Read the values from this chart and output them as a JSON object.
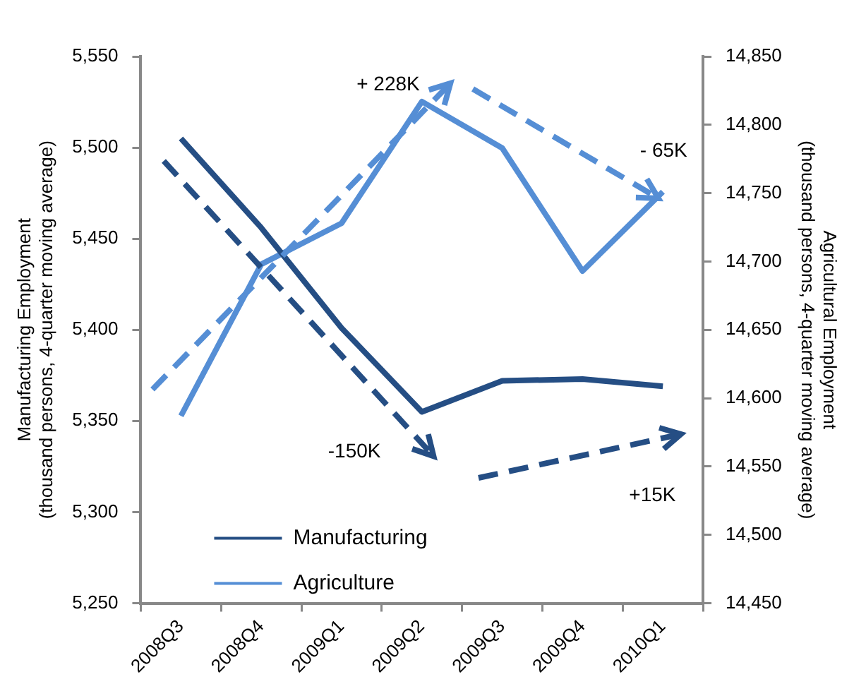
{
  "chart_data": {
    "type": "line",
    "categories": [
      "2008Q3",
      "2008Q4",
      "2009Q1",
      "2009Q2",
      "2009Q3",
      "2009Q4",
      "2010Q1"
    ],
    "series": [
      {
        "name": "Manufacturing",
        "color": "#254e84",
        "values": [
          5505,
          5456,
          5401,
          5355,
          5372,
          5373,
          5369
        ]
      },
      {
        "name": "Agriculture",
        "color": "#558ed5",
        "axis": "y2",
        "values": [
          14587,
          14698,
          14728,
          14817,
          14783,
          14693,
          14751
        ]
      }
    ],
    "ylabel": "Manufacturing Employment\n(thousand persons, 4-quarter moving average)",
    "y2label": "Agricultural Employment\n(thousand persons, 4-quarter moving average)",
    "ylim": [
      5250,
      5550
    ],
    "yticks": [
      {
        "value": 5250,
        "label": "5,250"
      },
      {
        "value": 5300,
        "label": "5,300"
      },
      {
        "value": 5350,
        "label": "5,350"
      },
      {
        "value": 5400,
        "label": "5,400"
      },
      {
        "value": 5450,
        "label": "5,450"
      },
      {
        "value": 5500,
        "label": "5,500"
      },
      {
        "value": 5550,
        "label": "5,550"
      }
    ],
    "y2lim": [
      14450,
      14850
    ],
    "y2ticks": [
      {
        "value": 14450,
        "label": "14,450"
      },
      {
        "value": 14500,
        "label": "14,500"
      },
      {
        "value": 14550,
        "label": "14,550"
      },
      {
        "value": 14600,
        "label": "14,600"
      },
      {
        "value": 14650,
        "label": "14,650"
      },
      {
        "value": 14700,
        "label": "14,700"
      },
      {
        "value": 14750,
        "label": "14,750"
      },
      {
        "value": 14800,
        "label": "14,800"
      },
      {
        "value": 14850,
        "label": "14,850"
      }
    ],
    "annotations": [
      "+ 228K",
      "- 65K",
      "-150K",
      "+15K"
    ],
    "legend": "bottom left",
    "grid": false,
    "marker": "none",
    "line_style": "solid"
  }
}
